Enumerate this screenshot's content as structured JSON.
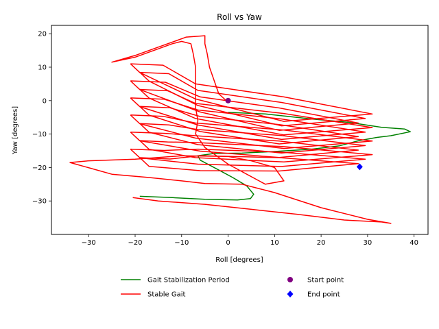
{
  "chart_data": {
    "type": "line",
    "title": "Roll vs Yaw",
    "xlabel": "Roll [degrees]",
    "ylabel": "Yaw [degrees]",
    "xlim": [
      -38,
      43
    ],
    "ylim": [
      -40,
      22.5
    ],
    "xticks": [
      -30,
      -20,
      -10,
      0,
      10,
      20,
      30,
      40
    ],
    "yticks": [
      -30,
      -20,
      -10,
      0,
      10,
      20
    ],
    "xtick_labels": [
      "−30",
      "−20",
      "−10",
      "0",
      "10",
      "20",
      "30",
      "40"
    ],
    "ytick_labels": [
      "−30",
      "−20",
      "−10",
      "0",
      "10",
      "20"
    ],
    "grid": false,
    "legend_position": "below-center",
    "series": [
      {
        "name": "Gait Stabilization Period",
        "color": "#008000",
        "x": [
          0,
          8,
          18,
          26,
          33,
          38,
          39.2,
          35,
          32,
          28,
          24,
          18,
          10,
          3,
          -3,
          -6.5,
          -6,
          -3,
          1,
          4,
          5.5,
          4.8,
          2,
          -5,
          -12,
          -19
        ],
        "y": [
          -3.5,
          -4,
          -5.5,
          -6.5,
          -8,
          -8.5,
          -9.3,
          -10.5,
          -11,
          -12,
          -13.5,
          -14.5,
          -15.2,
          -15.7,
          -15.8,
          -16.5,
          -17.8,
          -20,
          -23,
          -25.5,
          -28,
          -29.3,
          -29.7,
          -29.5,
          -29,
          -28.6
        ]
      },
      {
        "name": "Stable Gait",
        "color": "#ff0000",
        "x": [
          -20.5,
          -15,
          -5,
          5,
          15,
          25,
          33,
          35,
          30,
          20,
          10,
          3,
          -5,
          -10,
          -17,
          -25,
          -34,
          -30,
          -20,
          -10,
          0,
          5,
          10,
          12,
          8,
          0,
          -5,
          -7,
          -6.5,
          -7,
          -7,
          -7,
          -7,
          -7.5,
          -8,
          -10,
          -12,
          -15,
          -20,
          -25,
          -20,
          -15,
          -11,
          -9,
          -7,
          -5,
          -5,
          -4.5,
          -4,
          -3,
          -2,
          0
        ],
        "y": [
          -29,
          -30,
          -31,
          -32.5,
          -34,
          -35.7,
          -36.3,
          -36.7,
          -35.5,
          -32,
          -27.5,
          -25,
          -24.8,
          -24,
          -23,
          -22,
          -18.5,
          -18,
          -17.5,
          -16.5,
          -16.7,
          -18,
          -20,
          -24,
          -25,
          -19,
          -14,
          -10,
          -6,
          -2,
          2,
          6,
          10,
          14,
          17,
          17.7,
          17,
          15.5,
          13,
          11.5,
          13.5,
          16,
          18,
          19,
          19.2,
          19.4,
          17,
          14,
          10,
          6,
          2,
          -0.5
        ],
        "loops": {
          "count": 12,
          "left_x_range": [
            -21,
            -19
          ],
          "left_y_top": 11,
          "left_y_step": -2.55,
          "right_x_range": [
            28,
            31
          ],
          "right_y_top": -4,
          "right_y_step": -1.35
        }
      }
    ],
    "markers": [
      {
        "name": "Start point",
        "x": 0,
        "y": 0,
        "color": "#800080",
        "shape": "circle"
      },
      {
        "name": "End point",
        "x": 28.3,
        "y": -19.8,
        "color": "#0000ff",
        "shape": "diamond"
      }
    ]
  }
}
